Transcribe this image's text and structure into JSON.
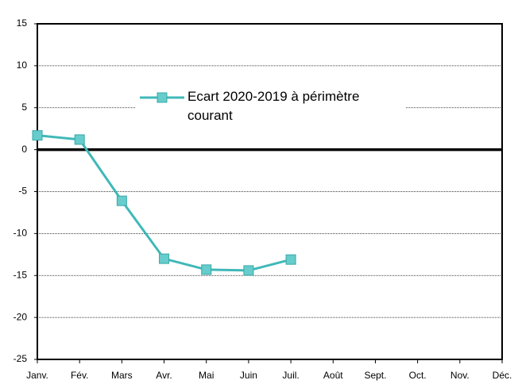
{
  "chart_data": {
    "type": "line",
    "categories": [
      "Janv.",
      "Fév.",
      "Mars",
      "Avr.",
      "Mai",
      "Juin",
      "Juil.",
      "Août",
      "Sept.",
      "Oct.",
      "Nov.",
      "Déc."
    ],
    "series": [
      {
        "name": "Ecart 2020-2019 à périmètre courant",
        "color": "#40b8b8",
        "values": [
          1.7,
          1.2,
          -6.1,
          -13.0,
          -14.3,
          -14.4,
          -13.1,
          null,
          null,
          null,
          null,
          null
        ]
      }
    ],
    "ylim": [
      -25,
      15
    ],
    "yticks": [
      -25,
      -20,
      -15,
      -10,
      -5,
      0,
      5,
      10,
      15
    ],
    "grid": true,
    "legend": "top"
  }
}
